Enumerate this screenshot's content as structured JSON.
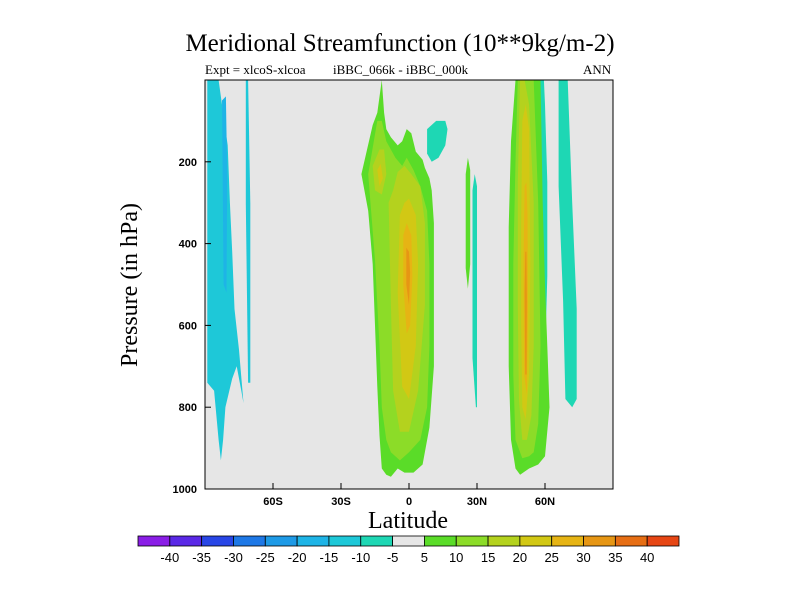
{
  "chart_data": {
    "type": "heatmap",
    "title": "Meridional Streamfunction (10**9kg/m-2)",
    "subtitle_left": "Expt = xlcoS-xlcoa",
    "subtitle_center": "iBBC_066k - iBBC_000k",
    "subtitle_right": "ANN",
    "xlabel": "Latitude",
    "ylabel": "Pressure (in hPa)",
    "xlim": [
      -90,
      90
    ],
    "ylim": [
      1000,
      0
    ],
    "xticks": [
      {
        "value": -60,
        "label": "60S"
      },
      {
        "value": -30,
        "label": "30S"
      },
      {
        "value": 0,
        "label": "0"
      },
      {
        "value": 30,
        "label": "30N"
      },
      {
        "value": 60,
        "label": "60N"
      }
    ],
    "yticks": [
      {
        "value": 200,
        "label": "200"
      },
      {
        "value": 400,
        "label": "400"
      },
      {
        "value": 600,
        "label": "600"
      },
      {
        "value": 800,
        "label": "800"
      },
      {
        "value": 1000,
        "label": "1000"
      }
    ],
    "colorbar": {
      "labels": [
        "-40",
        "-35",
        "-30",
        "-25",
        "-20",
        "-15",
        "-10",
        "-5",
        "5",
        "10",
        "15",
        "20",
        "25",
        "30",
        "35",
        "40"
      ],
      "colors": [
        "#8a1ee6",
        "#5a28e6",
        "#2846e6",
        "#1e78e6",
        "#1e9ae6",
        "#1eb4e6",
        "#1ec8d8",
        "#1ed7b4",
        "#e6e6e6",
        "#5adc28",
        "#8cdc28",
        "#b4d21e",
        "#d2c814",
        "#e6b414",
        "#e69614",
        "#e66e14",
        "#e64614"
      ]
    },
    "regions": [
      {
        "name": "sh-negative-band",
        "level": -10,
        "color": "#1ec8d8",
        "lat": [
          -89,
          -89,
          -86,
          -84,
          -83,
          -82,
          -81,
          -78,
          -76,
          -74,
          -73,
          -75,
          -77,
          -78,
          -79,
          -80,
          -82,
          -84,
          -86,
          -88
        ],
        "p": [
          0,
          740,
          760,
          880,
          930,
          880,
          800,
          730,
          700,
          760,
          790,
          660,
          560,
          420,
          300,
          160,
          80,
          0,
          0,
          0
        ]
      },
      {
        "name": "sh-negative-core",
        "level": -15,
        "color": "#1eb4e6",
        "lat": [
          -82.5,
          -82.2,
          -81.8,
          -80.5,
          -80.2,
          -80.8
        ],
        "p": [
          50,
          250,
          500,
          520,
          230,
          40
        ]
      },
      {
        "name": "sh-negative-strip",
        "level": -10,
        "color": "#1ec8d8",
        "lat": [
          -72,
          -72,
          -71,
          -70,
          -70,
          -71
        ],
        "p": [
          0,
          300,
          740,
          740,
          300,
          0
        ]
      },
      {
        "name": "hadley-5",
        "level": 5,
        "color": "#5adc28",
        "lat": [
          -12,
          -14,
          -16,
          -21,
          -18,
          -16,
          -15,
          -14,
          -13,
          -12,
          -10,
          -8,
          -5,
          -2,
          2,
          6,
          9,
          11,
          11,
          11,
          10,
          9,
          7,
          6,
          3,
          1,
          -1,
          -3,
          -5,
          -8,
          -10,
          -11,
          -12
        ],
        "p": [
          0,
          80,
          110,
          230,
          320,
          450,
          600,
          750,
          870,
          950,
          965,
          970,
          950,
          960,
          960,
          940,
          850,
          700,
          500,
          350,
          270,
          240,
          215,
          195,
          175,
          130,
          120,
          150,
          160,
          140,
          120,
          80,
          0
        ]
      },
      {
        "name": "hadley-10",
        "level": 10,
        "color": "#8cdc28",
        "lat": [
          -14,
          -18,
          -15,
          -13,
          -12,
          -10,
          -8,
          -4,
          0,
          5,
          8,
          9,
          9,
          8,
          5,
          2,
          -1,
          -3,
          -6,
          -10,
          -12
        ],
        "p": [
          100,
          230,
          440,
          650,
          800,
          880,
          910,
          930,
          910,
          880,
          800,
          650,
          450,
          320,
          260,
          220,
          190,
          210,
          190,
          150,
          100
        ]
      },
      {
        "name": "hadley-15",
        "level": 15,
        "color": "#b4d21e",
        "lat": [
          -9,
          -8,
          -7,
          -4,
          0,
          4,
          7,
          7,
          5,
          1,
          -2,
          -5,
          -7
        ],
        "p": [
          300,
          550,
          760,
          860,
          860,
          760,
          550,
          350,
          260,
          230,
          210,
          225,
          270
        ]
      },
      {
        "name": "hadley-upper-15",
        "level": 15,
        "color": "#b4d21e",
        "lat": [
          -16,
          -15,
          -12,
          -10,
          -11,
          -13
        ],
        "p": [
          210,
          270,
          280,
          230,
          170,
          170
        ]
      },
      {
        "name": "hadley-20",
        "level": 20,
        "color": "#d2c814",
        "lat": [
          -4,
          -5,
          -3,
          0,
          3,
          4,
          3,
          0,
          -2
        ],
        "p": [
          330,
          520,
          750,
          780,
          650,
          450,
          330,
          290,
          300
        ]
      },
      {
        "name": "hadley-upper-20",
        "level": 20,
        "color": "#d2c814",
        "lat": [
          -14,
          -13,
          -11.5,
          -12.5
        ],
        "p": [
          220,
          260,
          240,
          205
        ]
      },
      {
        "name": "hadley-25",
        "level": 25,
        "color": "#e6b414",
        "lat": [
          -2.5,
          -2.5,
          -1,
          0.5,
          1.5,
          1,
          -1
        ],
        "p": [
          380,
          500,
          620,
          600,
          480,
          380,
          350
        ]
      },
      {
        "name": "hadley-30",
        "level": 30,
        "color": "#e69614",
        "lat": [
          -1.2,
          -1.2,
          0,
          0.5,
          0
        ],
        "p": [
          410,
          500,
          550,
          470,
          420
        ]
      },
      {
        "name": "nh-upper-neg",
        "level": -5,
        "color": "#1ed7b4",
        "lat": [
          8,
          8,
          10,
          13,
          16,
          17,
          16,
          12
        ],
        "p": [
          120,
          180,
          200,
          190,
          160,
          120,
          100,
          100
        ]
      },
      {
        "name": "nh-strip-5",
        "level": 5,
        "color": "#5adc28",
        "lat": [
          25,
          25,
          26,
          27,
          27,
          26
        ],
        "p": [
          230,
          460,
          510,
          450,
          220,
          190
        ]
      },
      {
        "name": "nh-strip-neg",
        "level": -5,
        "color": "#1ed7b4",
        "lat": [
          28,
          28,
          29.5,
          30,
          30,
          29
        ],
        "p": [
          270,
          680,
          800,
          800,
          260,
          230
        ]
      },
      {
        "name": "ferrel-neg-right",
        "level": -5,
        "color": "#1ed7b4",
        "lat": [
          58,
          58,
          59.5,
          61,
          61,
          60,
          59.5
        ],
        "p": [
          0,
          800,
          780,
          480,
          250,
          60,
          0
        ]
      },
      {
        "name": "ferrel-neg-right2",
        "level": -5,
        "color": "#1ed7b4",
        "lat": [
          66,
          66,
          68,
          69,
          72,
          74,
          74,
          72,
          70,
          68
        ],
        "p": [
          0,
          260,
          540,
          780,
          800,
          780,
          560,
          300,
          0,
          0
        ]
      },
      {
        "name": "ferrel-5",
        "level": 5,
        "color": "#5adc28",
        "lat": [
          47,
          45,
          44,
          44,
          45,
          47,
          49,
          53,
          57,
          60,
          62,
          61,
          60,
          59,
          58,
          56,
          54,
          52,
          48
        ],
        "p": [
          0,
          150,
          360,
          700,
          880,
          950,
          965,
          950,
          940,
          920,
          800,
          650,
          500,
          300,
          0,
          0,
          0,
          0,
          0
        ]
      },
      {
        "name": "ferrel-10",
        "level": 10,
        "color": "#8cdc28",
        "lat": [
          48,
          47,
          46,
          46,
          47,
          50,
          53,
          55,
          57,
          58,
          57,
          55,
          53,
          50
        ],
        "p": [
          0,
          200,
          450,
          720,
          880,
          925,
          920,
          910,
          840,
          650,
          300,
          0,
          0,
          0
        ]
      },
      {
        "name": "ferrel-15",
        "level": 15,
        "color": "#b4d21e",
        "lat": [
          49,
          48,
          48,
          48.5,
          50,
          52,
          54,
          55,
          55,
          53,
          51
        ],
        "p": [
          0,
          250,
          550,
          780,
          880,
          880,
          820,
          650,
          300,
          60,
          0
        ]
      },
      {
        "name": "ferrel-20",
        "level": 20,
        "color": "#d2c814",
        "lat": [
          50,
          49.5,
          49.5,
          50,
          51.5,
          53,
          53.5,
          53,
          51.5
        ],
        "p": [
          100,
          350,
          600,
          800,
          830,
          720,
          450,
          120,
          60
        ]
      },
      {
        "name": "ferrel-25",
        "level": 25,
        "color": "#e6b414",
        "lat": [
          51,
          50.5,
          50.8,
          52,
          52.5,
          52.3,
          51.8
        ],
        "p": [
          260,
          450,
          720,
          770,
          560,
          330,
          250
        ]
      },
      {
        "name": "ferrel-30",
        "level": 30,
        "color": "#e69614",
        "lat": [
          51.3,
          51,
          51.3,
          51.9,
          52,
          51.8
        ],
        "p": [
          420,
          520,
          720,
          720,
          540,
          420
        ]
      }
    ]
  }
}
